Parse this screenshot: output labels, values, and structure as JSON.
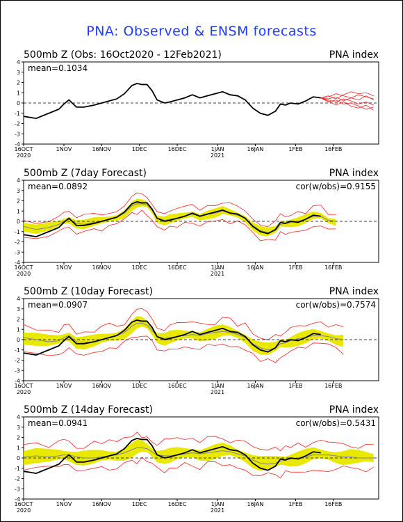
{
  "page_title": "PNA: Observed & ENSM forecasts",
  "colors": {
    "title": "#1e3cff",
    "observed": "#000000",
    "ensemble_member": "#ff2020",
    "spread_band": "#e8e800",
    "ensemble_mean": "#8080a0",
    "zero_line": "#000000"
  },
  "chart_data": [
    {
      "type": "line",
      "title": "500mb Z (Obs: 16Oct2020 - 12Feb2021)",
      "right_title": "PNA index",
      "stat_text": "mean=0.1034",
      "ylim": [
        -4,
        4
      ],
      "yticks": [
        "4",
        "3",
        "2",
        "1",
        "0",
        "-1",
        "-2",
        "-3",
        "-4"
      ],
      "xticks": [
        {
          "label": "16OCT",
          "sub": "2020",
          "day": 0
        },
        {
          "label": "1NOV",
          "sub": "",
          "day": 16
        },
        {
          "label": "16NOV",
          "sub": "",
          "day": 31
        },
        {
          "label": "1DEC",
          "sub": "",
          "day": 46
        },
        {
          "label": "16DEC",
          "sub": "",
          "day": 61
        },
        {
          "label": "1JAN",
          "sub": "2021",
          "day": 77
        },
        {
          "label": "16JAN",
          "sub": "",
          "day": 92
        },
        {
          "label": "1FEB",
          "sub": "",
          "day": 108
        },
        {
          "label": "16FEB",
          "sub": "",
          "day": 123
        }
      ],
      "series": [
        {
          "role": "observed",
          "x": [
            0,
            5,
            10,
            14,
            16,
            18,
            21,
            24,
            28,
            31,
            34,
            37,
            40,
            43,
            45,
            47,
            49,
            51,
            53,
            56,
            58,
            61,
            64,
            67,
            70,
            73,
            76,
            79,
            82,
            85,
            88,
            91,
            94,
            97,
            100,
            102,
            104,
            106,
            109,
            112,
            115,
            118
          ],
          "y": [
            -1.3,
            -1.5,
            -1.0,
            -0.6,
            -0.1,
            0.3,
            -0.4,
            -0.4,
            -0.2,
            0.0,
            0.2,
            0.4,
            0.9,
            1.7,
            1.9,
            1.8,
            1.8,
            1.2,
            0.3,
            0.0,
            0.1,
            0.3,
            0.5,
            0.8,
            0.5,
            0.7,
            0.9,
            1.1,
            0.8,
            0.7,
            0.3,
            -0.5,
            -1.0,
            -1.2,
            -0.8,
            -0.1,
            -0.2,
            0.0,
            -0.1,
            0.2,
            0.6,
            0.5
          ]
        },
        {
          "role": "ensemble",
          "x": [
            118,
            121,
            124,
            127,
            130,
            133,
            136,
            139
          ],
          "members": [
            [
              0.5,
              0.6,
              0.9,
              0.7,
              0.5,
              0.8,
              0.6,
              0.4
            ],
            [
              0.5,
              0.3,
              0.1,
              0.4,
              0.2,
              -0.1,
              0.1,
              -0.2
            ],
            [
              0.5,
              0.7,
              0.4,
              0.8,
              1.1,
              0.9,
              1.0,
              0.7
            ],
            [
              0.5,
              0.2,
              -0.2,
              0.1,
              -0.3,
              -0.5,
              -0.2,
              -0.7
            ],
            [
              0.5,
              0.4,
              0.6,
              0.2,
              0.5,
              0.3,
              0.7,
              0.3
            ],
            [
              0.5,
              0.1,
              0.3,
              -0.1,
              0.0,
              -0.3,
              -0.6,
              -0.4
            ]
          ]
        }
      ]
    },
    {
      "type": "area",
      "title": "500mb Z (7day Forecast)",
      "right_title": "PNA index",
      "stat_text": "mean=0.0892",
      "cor_text": "cor(w/obs)=0.9155",
      "ylim": [
        -4,
        4
      ],
      "yticks": [
        "4",
        "3",
        "2",
        "1",
        "0",
        "-1",
        "-2",
        "-3",
        "-4"
      ],
      "xticks": [
        {
          "label": "16OCT",
          "sub": "2020",
          "day": 0
        },
        {
          "label": "1NOV",
          "sub": "",
          "day": 16
        },
        {
          "label": "16NOV",
          "sub": "",
          "day": 31
        },
        {
          "label": "1DEC",
          "sub": "",
          "day": 46
        },
        {
          "label": "16DEC",
          "sub": "",
          "day": 61
        },
        {
          "label": "1JAN",
          "sub": "2021",
          "day": 77
        },
        {
          "label": "16JAN",
          "sub": "",
          "day": 92
        },
        {
          "label": "1FEB",
          "sub": "",
          "day": 108
        },
        {
          "label": "16FEB",
          "sub": "",
          "day": 123
        }
      ],
      "spread": 0.5,
      "outer": 0.9,
      "series": [
        {
          "role": "observed",
          "x": [
            0,
            5,
            10,
            14,
            16,
            18,
            21,
            24,
            28,
            31,
            34,
            37,
            40,
            43,
            45,
            47,
            49,
            51,
            53,
            56,
            58,
            61,
            64,
            67,
            70,
            73,
            76,
            79,
            82,
            85,
            88,
            91,
            94,
            97,
            100,
            102,
            104,
            106,
            109,
            112,
            115,
            118
          ],
          "y": [
            -1.3,
            -1.5,
            -1.0,
            -0.6,
            -0.1,
            0.3,
            -0.4,
            -0.4,
            -0.2,
            0.0,
            0.2,
            0.4,
            0.9,
            1.7,
            1.9,
            1.8,
            1.8,
            1.2,
            0.3,
            0.0,
            0.1,
            0.3,
            0.5,
            0.8,
            0.5,
            0.7,
            0.9,
            1.1,
            0.8,
            0.7,
            0.3,
            -0.5,
            -1.0,
            -1.2,
            -0.8,
            -0.1,
            -0.2,
            0.0,
            -0.1,
            0.2,
            0.6,
            0.5
          ]
        },
        {
          "role": "forecast_mean",
          "x": [
            0,
            5,
            10,
            14,
            16,
            18,
            21,
            24,
            28,
            31,
            34,
            37,
            40,
            43,
            45,
            47,
            49,
            51,
            53,
            56,
            58,
            61,
            64,
            67,
            70,
            73,
            76,
            79,
            82,
            85,
            88,
            91,
            94,
            97,
            100,
            102,
            104,
            106,
            109,
            112,
            115,
            118,
            121,
            124
          ],
          "y": [
            -0.5,
            -0.8,
            -0.6,
            -0.3,
            0.0,
            0.2,
            -0.2,
            -0.3,
            -0.1,
            0.0,
            0.2,
            0.4,
            0.8,
            1.5,
            1.7,
            1.7,
            1.6,
            1.1,
            0.3,
            0.1,
            0.2,
            0.3,
            0.5,
            0.7,
            0.5,
            0.7,
            0.8,
            1.0,
            0.8,
            0.6,
            0.3,
            -0.4,
            -0.9,
            -1.1,
            -0.9,
            -0.3,
            -0.2,
            -0.1,
            0.0,
            0.2,
            0.5,
            0.5,
            0.1,
            0.0
          ]
        }
      ]
    },
    {
      "type": "area",
      "title": "500mb Z (10day Forecast)",
      "right_title": "PNA index",
      "stat_text": "mean=0.0907",
      "cor_text": "cor(w/obs)=0.7574",
      "ylim": [
        -4,
        4
      ],
      "yticks": [
        "4",
        "3",
        "2",
        "1",
        "0",
        "-1",
        "-2",
        "-3",
        "-4"
      ],
      "xticks": [
        {
          "label": "16OCT",
          "sub": "2020",
          "day": 0
        },
        {
          "label": "1NOV",
          "sub": "",
          "day": 16
        },
        {
          "label": "16NOV",
          "sub": "",
          "day": 31
        },
        {
          "label": "1DEC",
          "sub": "",
          "day": 46
        },
        {
          "label": "16DEC",
          "sub": "",
          "day": 61
        },
        {
          "label": "1JAN",
          "sub": "2021",
          "day": 77
        },
        {
          "label": "16JAN",
          "sub": "",
          "day": 92
        },
        {
          "label": "1FEB",
          "sub": "",
          "day": 108
        },
        {
          "label": "16FEB",
          "sub": "",
          "day": 123
        }
      ],
      "spread": 0.7,
      "outer": 1.2,
      "series": [
        {
          "role": "observed",
          "x": [
            0,
            5,
            10,
            14,
            16,
            18,
            21,
            24,
            28,
            31,
            34,
            37,
            40,
            43,
            45,
            47,
            49,
            51,
            53,
            56,
            58,
            61,
            64,
            67,
            70,
            73,
            76,
            79,
            82,
            85,
            88,
            91,
            94,
            97,
            100,
            102,
            104,
            106,
            109,
            112,
            115,
            118
          ],
          "y": [
            -1.3,
            -1.5,
            -1.0,
            -0.6,
            -0.1,
            0.3,
            -0.4,
            -0.4,
            -0.2,
            0.0,
            0.2,
            0.4,
            0.9,
            1.7,
            1.9,
            1.8,
            1.8,
            1.2,
            0.3,
            0.0,
            0.1,
            0.3,
            0.5,
            0.8,
            0.5,
            0.7,
            0.9,
            1.1,
            0.8,
            0.7,
            0.3,
            -0.5,
            -1.0,
            -1.2,
            -0.8,
            -0.1,
            -0.2,
            0.0,
            -0.1,
            0.2,
            0.6,
            0.5
          ]
        },
        {
          "role": "forecast_mean",
          "x": [
            0,
            5,
            10,
            14,
            16,
            18,
            21,
            24,
            28,
            31,
            34,
            37,
            40,
            43,
            45,
            47,
            49,
            51,
            53,
            56,
            58,
            61,
            64,
            67,
            70,
            73,
            76,
            79,
            82,
            85,
            88,
            91,
            94,
            97,
            100,
            102,
            104,
            106,
            109,
            112,
            115,
            118,
            121,
            124,
            127
          ],
          "y": [
            0.2,
            0.0,
            -0.2,
            -0.1,
            0.2,
            0.4,
            -0.2,
            -0.3,
            -0.2,
            0.0,
            0.2,
            0.4,
            0.7,
            1.3,
            1.6,
            1.6,
            1.4,
            0.9,
            0.3,
            0.1,
            0.2,
            0.3,
            0.4,
            0.5,
            0.4,
            0.6,
            0.7,
            0.8,
            0.7,
            0.5,
            0.2,
            -0.4,
            -0.8,
            -1.0,
            -0.8,
            -0.4,
            -0.3,
            -0.1,
            0.1,
            0.2,
            0.4,
            0.4,
            0.3,
            0.1,
            0.0
          ]
        }
      ]
    },
    {
      "type": "area",
      "title": "500mb Z (14day Forecast)",
      "right_title": "PNA index",
      "stat_text": "mean=0.0941",
      "cor_text": "cor(w/obs)=0.5431",
      "ylim": [
        -4,
        4
      ],
      "yticks": [
        "4",
        "3",
        "2",
        "1",
        "0",
        "-1",
        "-2",
        "-3",
        "-4"
      ],
      "xticks": [
        {
          "label": "16OCT",
          "sub": "2020",
          "day": 0
        },
        {
          "label": "1NOV",
          "sub": "",
          "day": 16
        },
        {
          "label": "16NOV",
          "sub": "",
          "day": 31
        },
        {
          "label": "1DEC",
          "sub": "",
          "day": 46
        },
        {
          "label": "16DEC",
          "sub": "",
          "day": 61
        },
        {
          "label": "1JAN",
          "sub": "2021",
          "day": 77
        },
        {
          "label": "16JAN",
          "sub": "",
          "day": 92
        },
        {
          "label": "1FEB",
          "sub": "",
          "day": 108
        },
        {
          "label": "16FEB",
          "sub": "",
          "day": 123
        }
      ],
      "spread": 0.8,
      "outer": 1.4,
      "series": [
        {
          "role": "observed",
          "x": [
            0,
            5,
            10,
            14,
            16,
            18,
            21,
            24,
            28,
            31,
            34,
            37,
            40,
            43,
            45,
            47,
            49,
            51,
            53,
            56,
            58,
            61,
            64,
            67,
            70,
            73,
            76,
            79,
            82,
            85,
            88,
            91,
            94,
            97,
            100,
            102,
            104,
            106,
            109,
            112,
            115,
            118
          ],
          "y": [
            -1.3,
            -1.5,
            -1.0,
            -0.6,
            -0.1,
            0.3,
            -0.4,
            -0.4,
            -0.2,
            0.0,
            0.2,
            0.4,
            0.9,
            1.7,
            1.9,
            1.8,
            1.8,
            1.2,
            0.3,
            0.0,
            0.1,
            0.3,
            0.5,
            0.8,
            0.5,
            0.7,
            0.9,
            1.1,
            0.8,
            0.7,
            0.3,
            -0.5,
            -1.0,
            -1.2,
            -0.8,
            -0.1,
            -0.2,
            0.0,
            -0.1,
            0.2,
            0.6,
            0.5
          ]
        },
        {
          "role": "forecast_mean",
          "x": [
            0,
            5,
            10,
            14,
            16,
            18,
            21,
            24,
            28,
            31,
            34,
            37,
            40,
            43,
            45,
            47,
            49,
            51,
            53,
            56,
            58,
            61,
            64,
            67,
            70,
            73,
            76,
            79,
            82,
            85,
            88,
            91,
            94,
            97,
            100,
            102,
            104,
            106,
            109,
            112,
            115,
            118,
            121,
            124,
            127,
            130,
            133,
            136,
            139
          ],
          "y": [
            0.1,
            0.2,
            0.1,
            0.2,
            0.3,
            0.3,
            0.1,
            0.0,
            0.0,
            0.1,
            0.2,
            0.3,
            0.5,
            0.8,
            1.0,
            1.0,
            0.9,
            0.6,
            0.3,
            0.2,
            0.2,
            0.3,
            0.4,
            0.5,
            0.4,
            0.5,
            0.6,
            0.7,
            0.6,
            0.4,
            0.2,
            -0.2,
            -0.5,
            -0.6,
            -0.5,
            -0.3,
            -0.2,
            -0.1,
            0.0,
            0.1,
            0.3,
            0.3,
            0.3,
            0.2,
            0.1,
            0.1,
            0.0,
            0.0,
            0.0
          ]
        }
      ]
    }
  ]
}
